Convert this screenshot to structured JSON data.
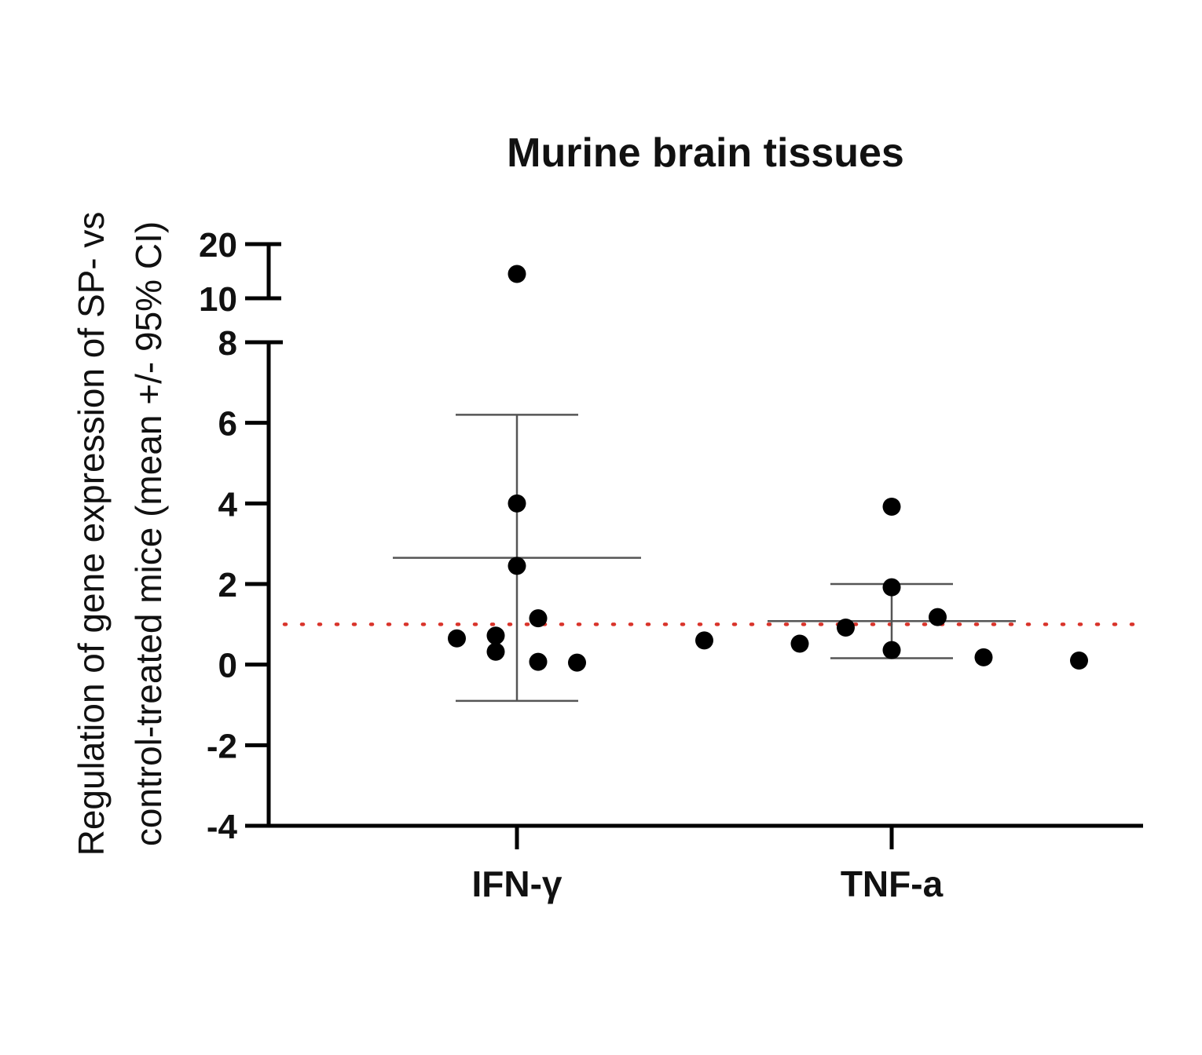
{
  "chart_data": {
    "type": "scatter",
    "title": "Murine brain tissues",
    "xlabel": "",
    "ylabel_lines": [
      "Regulation of gene expression of SP- vs",
      "control-treated mice (mean +/- 95% CI)"
    ],
    "categories": [
      "IFN-γ",
      "TNF-a"
    ],
    "y_axis": {
      "broken": true,
      "lower_segment": {
        "range": [
          -4,
          8
        ],
        "ticks": [
          "-4",
          "-2",
          "0",
          "2",
          "4",
          "6",
          "8"
        ]
      },
      "upper_segment": {
        "range": [
          10,
          20
        ],
        "ticks": [
          "10",
          "20"
        ]
      }
    },
    "reference_line": {
      "y": 1,
      "style": "dotted",
      "color": "#d9342b"
    },
    "series": [
      {
        "category": "IFN-γ",
        "points": [
          {
            "dx": 0,
            "y": 14.5
          },
          {
            "dx": 0,
            "y": 4.0
          },
          {
            "dx": 0,
            "y": 2.45
          },
          {
            "dx": 0.06,
            "y": 1.15
          },
          {
            "dx": -0.17,
            "y": 0.65
          },
          {
            "dx": -0.06,
            "y": 0.72
          },
          {
            "dx": -0.06,
            "y": 0.32
          },
          {
            "dx": 0.06,
            "y": 0.07
          },
          {
            "dx": 0.17,
            "y": 0.05
          }
        ],
        "mean": 2.65,
        "ci_upper": 6.2,
        "ci_lower": -0.9
      },
      {
        "category": "TNF-a",
        "points": [
          {
            "dx": 0,
            "y": 3.92
          },
          {
            "dx": 0,
            "y": 1.92
          },
          {
            "dx": 0.13,
            "y": 1.18
          },
          {
            "dx": -0.13,
            "y": 0.92
          },
          {
            "dx": -0.53,
            "y": 0.6
          },
          {
            "dx": -0.26,
            "y": 0.52
          },
          {
            "dx": 0,
            "y": 0.36
          },
          {
            "dx": 0.26,
            "y": 0.18
          },
          {
            "dx": 0.53,
            "y": 0.1
          }
        ],
        "mean": 1.08,
        "ci_upper": 2.0,
        "ci_lower": 0.16
      }
    ],
    "colors": {
      "points": "#000000",
      "axis": "#000000",
      "error_bars": "#555555"
    }
  }
}
